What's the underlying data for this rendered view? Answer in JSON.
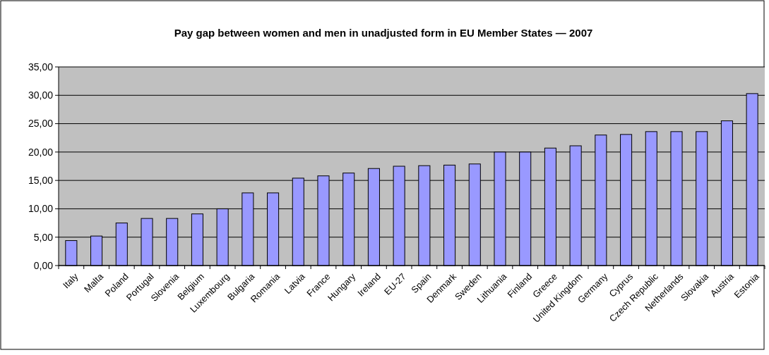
{
  "chart_data": {
    "type": "bar",
    "title": "Pay gap between women and men in unadjusted form in EU Member States — 2007",
    "categories": [
      "Italy",
      "Malta",
      "Poland",
      "Portugal",
      "Slovenia",
      "Belgium",
      "Luxembourg",
      "Bulgaria",
      "Romania",
      "Latvia",
      "France",
      "Hungary",
      "Ireland",
      "EU-27",
      "Spain",
      "Denmark",
      "Sweden",
      "Lithuania",
      "Finland",
      "Greece",
      "United Kingdom",
      "Germany",
      "Cyprus",
      "Czech Republic",
      "Netherlands",
      "Slovakia",
      "Austria",
      "Estonia"
    ],
    "values": [
      4.4,
      5.2,
      7.5,
      8.3,
      8.3,
      9.1,
      10.0,
      12.8,
      12.8,
      15.4,
      15.8,
      16.3,
      17.1,
      17.5,
      17.6,
      17.7,
      17.9,
      20.0,
      20.0,
      20.7,
      21.1,
      23.0,
      23.1,
      23.6,
      23.6,
      23.6,
      25.5,
      30.3
    ],
    "color": "#9999ff",
    "ylim": [
      0,
      35
    ],
    "yticks": [
      {
        "value": 0,
        "label": "0,00"
      },
      {
        "value": 5,
        "label": "5,00"
      },
      {
        "value": 10,
        "label": "10,00"
      },
      {
        "value": 15,
        "label": "15,00"
      },
      {
        "value": 20,
        "label": "20,00"
      },
      {
        "value": 25,
        "label": "25,00"
      },
      {
        "value": 30,
        "label": "30,00"
      },
      {
        "value": 35,
        "label": "35,00"
      }
    ],
    "grid": "y"
  }
}
